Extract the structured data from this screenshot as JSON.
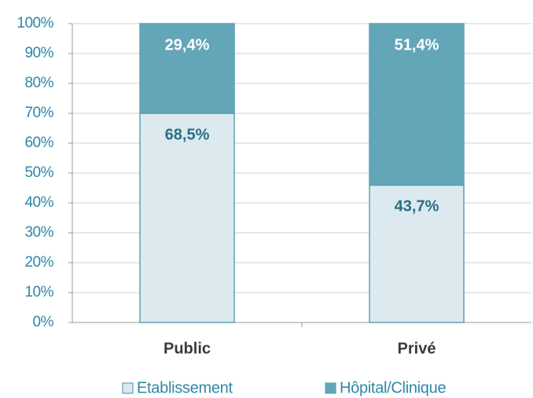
{
  "chart_data": {
    "type": "bar",
    "stacked": "percent",
    "categories": [
      "Public",
      "Privé"
    ],
    "series": [
      {
        "name": "Etablissement",
        "color": "#dce9ef",
        "values": [
          68.5,
          43.7
        ],
        "value_labels": [
          "68,5%",
          "43,7%"
        ]
      },
      {
        "name": "Hôpital/Clinique",
        "color": "#62a6b8",
        "values": [
          29.4,
          51.4
        ],
        "value_labels": [
          "29,4%",
          "51,4%"
        ]
      }
    ],
    "ylim": [
      0,
      100
    ],
    "yticks": [
      {
        "value": 0,
        "label": "0%"
      },
      {
        "value": 10,
        "label": "10%"
      },
      {
        "value": 20,
        "label": "20%"
      },
      {
        "value": 30,
        "label": "30%"
      },
      {
        "value": 40,
        "label": "40%"
      },
      {
        "value": 50,
        "label": "50%"
      },
      {
        "value": 60,
        "label": "60%"
      },
      {
        "value": 70,
        "label": "70%"
      },
      {
        "value": 80,
        "label": "80%"
      },
      {
        "value": 90,
        "label": "90%"
      },
      {
        "value": 100,
        "label": "100%"
      }
    ],
    "grid": true,
    "legend": "bottom"
  }
}
